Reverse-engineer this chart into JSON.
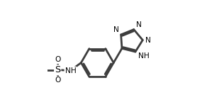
{
  "bg": "#ffffff",
  "lc": "#3d3d3d",
  "tc": "#000000",
  "lw": 2.0,
  "dbo": 0.013,
  "fs": 7.2,
  "xlim": [
    0.0,
    1.0
  ],
  "ylim": [
    0.0,
    1.0
  ]
}
